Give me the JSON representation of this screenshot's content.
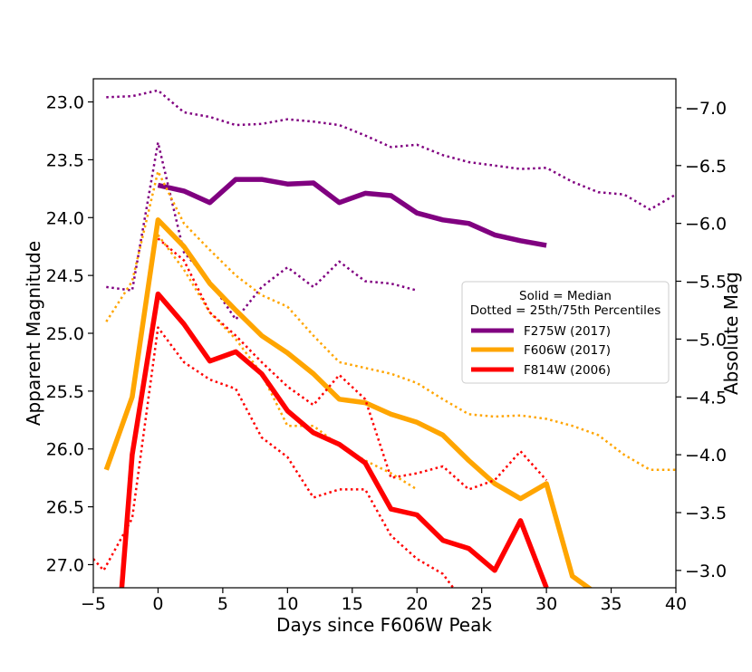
{
  "chart_data": {
    "type": "line",
    "xlabel": "Days since F606W Peak",
    "ylabel": "Apparent Magnitude",
    "y2label": "Absolute Mag",
    "xlim": [
      -5,
      40
    ],
    "ylim": [
      27.2,
      22.8
    ],
    "y2lim": [
      -2.85,
      -7.25
    ],
    "x_ticks": [
      -5,
      0,
      5,
      10,
      15,
      20,
      25,
      30,
      35,
      40
    ],
    "x_tick_labels": [
      "−5",
      "0",
      "5",
      "10",
      "15",
      "20",
      "25",
      "30",
      "35",
      "40"
    ],
    "y_ticks": [
      23.0,
      23.5,
      24.0,
      24.5,
      25.0,
      25.5,
      26.0,
      26.5,
      27.0
    ],
    "y_tick_labels": [
      "23.0",
      "23.5",
      "24.0",
      "24.5",
      "25.0",
      "25.5",
      "26.0",
      "26.5",
      "27.0"
    ],
    "y2_ticks": [
      -7.0,
      -6.5,
      -6.0,
      -5.5,
      -5.0,
      -4.5,
      -4.0,
      -3.5,
      -3.0
    ],
    "y2_tick_labels": [
      "−7.0",
      "−6.5",
      "−6.0",
      "−5.5",
      "−5.0",
      "−4.5",
      "−4.0",
      "−3.5",
      "−3.0"
    ],
    "legend": {
      "title_line1": "Solid = Median",
      "title_line2": "Dotted = 25th/75th Percentiles",
      "entries": [
        "F275W (2017)",
        "F606W (2017)",
        "F814W (2006)"
      ],
      "placement": "center-right"
    },
    "series": [
      {
        "name": "F275W (2017) median",
        "color": "#800080",
        "style": "solid",
        "x": [
          0,
          2,
          4,
          6,
          8,
          10,
          12,
          14,
          16,
          18,
          20,
          22,
          24,
          26,
          28,
          30
        ],
        "y": [
          23.72,
          23.77,
          23.87,
          23.67,
          23.67,
          23.71,
          23.7,
          23.87,
          23.79,
          23.81,
          23.96,
          24.02,
          24.05,
          24.15,
          24.2,
          24.24
        ]
      },
      {
        "name": "F275W (2017) 25th percentile",
        "color": "#800080",
        "style": "dotted",
        "x": [
          -4,
          -2,
          0,
          2,
          4,
          6,
          8,
          10,
          12,
          14,
          16,
          18,
          20,
          22,
          24,
          26,
          28,
          30,
          32,
          34,
          36,
          38,
          40
        ],
        "y": [
          22.96,
          22.95,
          22.9,
          23.09,
          23.13,
          23.2,
          23.19,
          23.15,
          23.17,
          23.2,
          23.29,
          23.39,
          23.37,
          23.46,
          23.52,
          23.55,
          23.58,
          23.57,
          23.69,
          23.78,
          23.8,
          23.93,
          23.8
        ]
      },
      {
        "name": "F275W (2017) 75th percentile",
        "color": "#800080",
        "style": "dotted",
        "x": [
          -4,
          -2,
          0,
          2,
          4,
          6,
          8,
          10,
          12,
          14,
          16,
          18,
          20
        ],
        "y": [
          24.6,
          24.63,
          23.35,
          24.3,
          24.55,
          24.88,
          24.6,
          24.43,
          24.6,
          24.38,
          24.55,
          24.57,
          24.63
        ]
      },
      {
        "name": "F606W (2017) median",
        "color": "#FFA500",
        "style": "solid",
        "x": [
          -4,
          -2,
          0,
          2,
          4,
          6,
          8,
          10,
          12,
          14,
          16,
          18,
          20,
          22,
          24,
          26,
          28,
          30,
          32,
          34
        ],
        "y": [
          26.18,
          25.55,
          24.02,
          24.25,
          24.57,
          24.8,
          25.02,
          25.17,
          25.35,
          25.57,
          25.6,
          25.7,
          25.77,
          25.88,
          26.1,
          26.3,
          26.43,
          26.3,
          27.1,
          27.26
        ]
      },
      {
        "name": "F606W (2017) 25th percentile",
        "color": "#FFA500",
        "style": "dotted",
        "x": [
          -4,
          -2,
          0,
          2,
          4,
          6,
          8,
          10,
          12,
          14,
          16,
          18,
          20,
          22,
          24,
          26,
          28,
          30,
          32,
          34,
          36,
          38,
          40
        ],
        "y": [
          24.9,
          24.55,
          23.6,
          24.05,
          24.28,
          24.5,
          24.67,
          24.77,
          25.02,
          25.25,
          25.3,
          25.35,
          25.43,
          25.57,
          25.7,
          25.72,
          25.71,
          25.74,
          25.8,
          25.88,
          26.05,
          26.18,
          26.18
        ]
      },
      {
        "name": "F606W (2017) 75th percentile",
        "color": "#FFA500",
        "style": "dotted",
        "x": [
          0,
          2,
          4,
          6,
          8,
          10,
          12,
          14,
          16,
          18,
          20
        ],
        "y": [
          24.15,
          24.45,
          24.82,
          25.05,
          25.35,
          25.8,
          25.8,
          25.97,
          26.1,
          26.21,
          26.35
        ]
      },
      {
        "name": "F814W (2006) median",
        "color": "#FF0000",
        "style": "solid",
        "x": [
          -2.8,
          -2,
          0,
          2,
          4,
          6,
          8,
          10,
          12,
          14,
          16,
          18,
          20,
          22,
          24,
          26,
          28,
          30
        ],
        "y": [
          27.2,
          26.05,
          24.66,
          24.92,
          25.24,
          25.16,
          25.35,
          25.67,
          25.86,
          25.96,
          26.12,
          26.52,
          26.57,
          26.79,
          26.86,
          27.05,
          26.62,
          27.2
        ]
      },
      {
        "name": "F814W (2006) 25th percentile",
        "color": "#FF0000",
        "style": "dotted",
        "x": [
          0,
          2,
          4,
          6,
          8,
          10,
          12,
          14,
          16,
          18,
          20,
          22,
          24,
          26,
          28,
          30
        ],
        "y": [
          24.18,
          24.37,
          24.82,
          25.02,
          25.25,
          25.46,
          25.62,
          25.36,
          25.57,
          26.25,
          26.21,
          26.15,
          26.35,
          26.27,
          26.02,
          26.27
        ]
      },
      {
        "name": "F814W (2006) 75th percentile",
        "color": "#FF0000",
        "style": "dotted",
        "x": [
          -5,
          -4.2,
          -2,
          0,
          2,
          4,
          6,
          8,
          10,
          12,
          14,
          16,
          18,
          20,
          22,
          22.8
        ],
        "y": [
          26.95,
          27.05,
          26.6,
          24.95,
          25.25,
          25.4,
          25.48,
          25.9,
          26.07,
          26.42,
          26.35,
          26.35,
          26.75,
          26.95,
          27.08,
          27.2
        ]
      }
    ]
  }
}
